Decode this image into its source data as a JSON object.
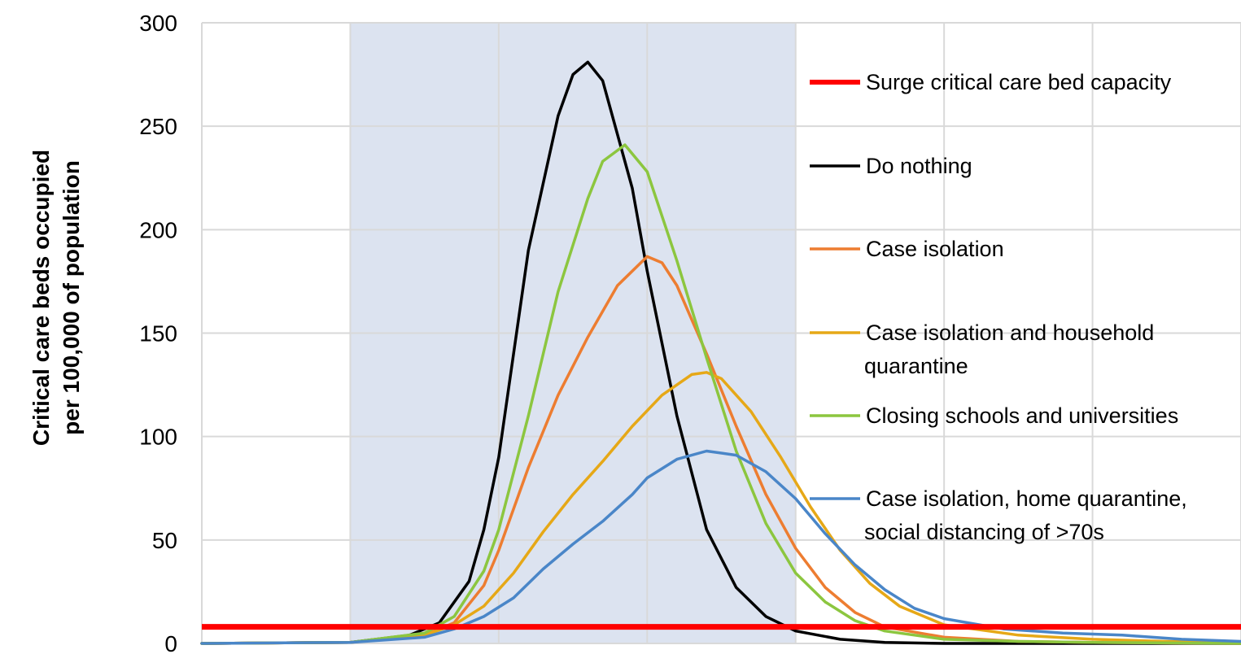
{
  "chart_data": {
    "type": "line",
    "title": "",
    "xlabel": "",
    "ylabel": [
      "Critical care beds occupied",
      "per 100,000 of population"
    ],
    "ylim": [
      0,
      300
    ],
    "xlim": [
      0,
      700
    ],
    "y_ticks": [
      "0",
      "50",
      "100",
      "150",
      "200",
      "250",
      "300"
    ],
    "grid": true,
    "shaded_period": [
      100,
      400
    ],
    "legend_placement": "right, inside plot",
    "reference_line": {
      "name": "Surge critical care bed capacity",
      "value": 8,
      "color": "#ff0000"
    },
    "series": [
      {
        "name": "Do nothing",
        "color": "#000000",
        "points": [
          [
            0,
            0
          ],
          [
            100,
            0.5
          ],
          [
            140,
            4
          ],
          [
            160,
            10
          ],
          [
            180,
            30
          ],
          [
            190,
            55
          ],
          [
            200,
            90
          ],
          [
            210,
            140
          ],
          [
            220,
            190
          ],
          [
            240,
            255
          ],
          [
            250,
            275
          ],
          [
            260,
            281
          ],
          [
            270,
            272
          ],
          [
            290,
            220
          ],
          [
            300,
            180
          ],
          [
            320,
            110
          ],
          [
            340,
            55
          ],
          [
            360,
            27
          ],
          [
            380,
            13
          ],
          [
            400,
            6
          ],
          [
            430,
            2
          ],
          [
            460,
            0.5
          ],
          [
            500,
            0
          ],
          [
            700,
            0
          ]
        ]
      },
      {
        "name": "Case isolation",
        "color": "#ed7d31",
        "points": [
          [
            0,
            0
          ],
          [
            100,
            0.5
          ],
          [
            150,
            4
          ],
          [
            170,
            10
          ],
          [
            190,
            28
          ],
          [
            200,
            45
          ],
          [
            220,
            85
          ],
          [
            240,
            120
          ],
          [
            260,
            148
          ],
          [
            280,
            173
          ],
          [
            300,
            187
          ],
          [
            310,
            184
          ],
          [
            320,
            173
          ],
          [
            340,
            140
          ],
          [
            360,
            105
          ],
          [
            380,
            72
          ],
          [
            400,
            46
          ],
          [
            420,
            27
          ],
          [
            440,
            15
          ],
          [
            460,
            8
          ],
          [
            500,
            3
          ],
          [
            550,
            1
          ],
          [
            600,
            0.5
          ],
          [
            700,
            0
          ]
        ]
      },
      {
        "name": "Case isolation and household quarantine",
        "color": "#e6a817",
        "points": [
          [
            0,
            0
          ],
          [
            100,
            0.5
          ],
          [
            150,
            4
          ],
          [
            170,
            9
          ],
          [
            190,
            18
          ],
          [
            210,
            34
          ],
          [
            230,
            54
          ],
          [
            250,
            72
          ],
          [
            270,
            88
          ],
          [
            290,
            105
          ],
          [
            310,
            120
          ],
          [
            330,
            130
          ],
          [
            340,
            131
          ],
          [
            350,
            128
          ],
          [
            370,
            112
          ],
          [
            390,
            90
          ],
          [
            410,
            66
          ],
          [
            430,
            45
          ],
          [
            450,
            29
          ],
          [
            470,
            18
          ],
          [
            500,
            9
          ],
          [
            550,
            4
          ],
          [
            600,
            2
          ],
          [
            650,
            1
          ],
          [
            700,
            0.5
          ]
        ]
      },
      {
        "name": "Closing schools and universities",
        "color": "#8cc63f",
        "points": [
          [
            0,
            0
          ],
          [
            100,
            0.5
          ],
          [
            150,
            5
          ],
          [
            170,
            13
          ],
          [
            190,
            35
          ],
          [
            200,
            55
          ],
          [
            220,
            110
          ],
          [
            240,
            170
          ],
          [
            260,
            215
          ],
          [
            270,
            233
          ],
          [
            285,
            241
          ],
          [
            300,
            228
          ],
          [
            320,
            185
          ],
          [
            340,
            138
          ],
          [
            360,
            93
          ],
          [
            380,
            58
          ],
          [
            400,
            34
          ],
          [
            420,
            20
          ],
          [
            440,
            11
          ],
          [
            460,
            6
          ],
          [
            500,
            2
          ],
          [
            550,
            1
          ],
          [
            600,
            0.5
          ],
          [
            700,
            0
          ]
        ]
      },
      {
        "name": "Case isolation, home quarantine, social distancing of >70s",
        "color": "#4a86c8",
        "points": [
          [
            0,
            0
          ],
          [
            100,
            0.5
          ],
          [
            150,
            3
          ],
          [
            170,
            7
          ],
          [
            190,
            13
          ],
          [
            210,
            22
          ],
          [
            230,
            36
          ],
          [
            250,
            48
          ],
          [
            270,
            59
          ],
          [
            290,
            72
          ],
          [
            300,
            80
          ],
          [
            320,
            89
          ],
          [
            340,
            93
          ],
          [
            360,
            91
          ],
          [
            380,
            83
          ],
          [
            400,
            70
          ],
          [
            420,
            53
          ],
          [
            440,
            38
          ],
          [
            460,
            26
          ],
          [
            480,
            17
          ],
          [
            500,
            12
          ],
          [
            540,
            7
          ],
          [
            580,
            5
          ],
          [
            620,
            4
          ],
          [
            660,
            2
          ],
          [
            700,
            1
          ]
        ]
      }
    ]
  },
  "legend": [
    {
      "lines": [
        "Surge critical care bed capacity"
      ],
      "color": "#ff0000",
      "thick": true
    },
    {
      "lines": [
        "Do nothing"
      ],
      "color": "#000000",
      "thick": false
    },
    {
      "lines": [
        "Case isolation"
      ],
      "color": "#ed7d31",
      "thick": false
    },
    {
      "lines": [
        "Case isolation and household",
        "quarantine"
      ],
      "color": "#e6a817",
      "thick": false
    },
    {
      "lines": [
        "Closing schools and universities"
      ],
      "color": "#8cc63f",
      "thick": false
    },
    {
      "lines": [
        "Case isolation, home quarantine,",
        "social distancing of >70s"
      ],
      "color": "#4a86c8",
      "thick": false
    }
  ],
  "colors": {
    "grid": "#d9d9d9",
    "shade": "#dce3f0"
  }
}
